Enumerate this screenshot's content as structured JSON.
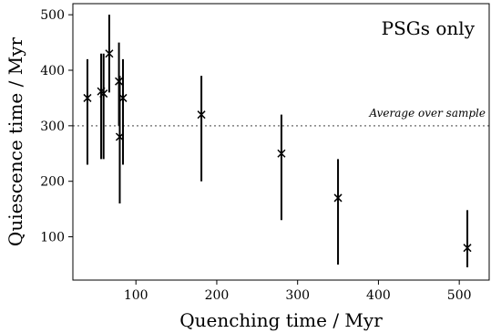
{
  "chart_data": {
    "type": "scatter",
    "xlabel": "Quenching time / Myr",
    "ylabel": "Quiescence time / Myr",
    "xlim": [
      22,
      537
    ],
    "ylim": [
      22,
      520
    ],
    "xticks": [
      100,
      200,
      300,
      400,
      500
    ],
    "yticks": [
      100,
      200,
      300,
      400,
      500
    ],
    "grid": false,
    "annotation": "PSGs only",
    "reference_line": {
      "y": 300,
      "label": "Average over sample",
      "style": "dotted",
      "color": "#808080"
    },
    "points": [
      {
        "x": 40,
        "y": 350,
        "ylow": 230,
        "yhigh": 420
      },
      {
        "x": 57,
        "y": 362,
        "ylow": 240,
        "yhigh": 430
      },
      {
        "x": 60,
        "y": 358,
        "ylow": 240,
        "yhigh": 430
      },
      {
        "x": 67,
        "y": 430,
        "ylow": 360,
        "yhigh": 500
      },
      {
        "x": 79,
        "y": 380,
        "ylow": 300,
        "yhigh": 450
      },
      {
        "x": 80,
        "y": 280,
        "ylow": 160,
        "yhigh": 390
      },
      {
        "x": 84,
        "y": 350,
        "ylow": 230,
        "yhigh": 420
      },
      {
        "x": 181,
        "y": 320,
        "ylow": 200,
        "yhigh": 390
      },
      {
        "x": 280,
        "y": 250,
        "ylow": 130,
        "yhigh": 320
      },
      {
        "x": 350,
        "y": 170,
        "ylow": 50,
        "yhigh": 240
      },
      {
        "x": 510,
        "y": 80,
        "ylow": 45,
        "yhigh": 148
      }
    ],
    "marker_color": "#000000"
  }
}
